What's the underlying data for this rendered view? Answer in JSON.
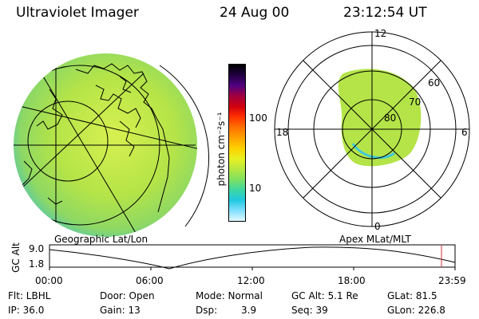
{
  "header": {
    "instrument": "Ultraviolet Imager",
    "date": "24 Aug 00",
    "time": "23:12:54 UT"
  },
  "colorbar": {
    "label": "photon cm⁻²s⁻¹",
    "tick_100": "100",
    "tick_10": "10",
    "colors_top_to_bottom": [
      "#000000",
      "#200040",
      "#500080",
      "#a00040",
      "#d00010",
      "#ff3000",
      "#ff7000",
      "#ffa000",
      "#ffd000",
      "#e8f020",
      "#b8e840",
      "#80e060",
      "#40d8a0",
      "#20c8e0",
      "#80e0ff",
      "#e0f8ff"
    ]
  },
  "left_panel": {
    "caption": "Geographic Lat/Lon",
    "fill_color": "#b8e84a"
  },
  "right_panel": {
    "caption": "Apex MLat/MLT",
    "labels": {
      "top": "12",
      "left": "18",
      "right": "6",
      "bottom": "0",
      "lat60": "60",
      "lat70": "70",
      "lat80": "80"
    },
    "fill_color": "#b8e84a"
  },
  "timeline": {
    "ylabel": "GC Alt",
    "y_top": "9.0",
    "y_bottom": "1.8",
    "x_ticks": [
      "00:00",
      "06:00",
      "12:00",
      "18:00",
      "23:59"
    ],
    "marker_color": "#d03030"
  },
  "info": {
    "filter": "Flt: LBHL",
    "ip": "IP: 36.0",
    "door": "Door: Open",
    "gain": "Gain: 13",
    "mode": "Mode: Normal",
    "dsp_label": "Dsp:",
    "dsp_value": "3.9",
    "gc_alt": "GC Alt: 5.1 Re",
    "seq": "Seq: 39",
    "glat": "GLat: 81.5",
    "glon": "GLon: 226.8"
  }
}
